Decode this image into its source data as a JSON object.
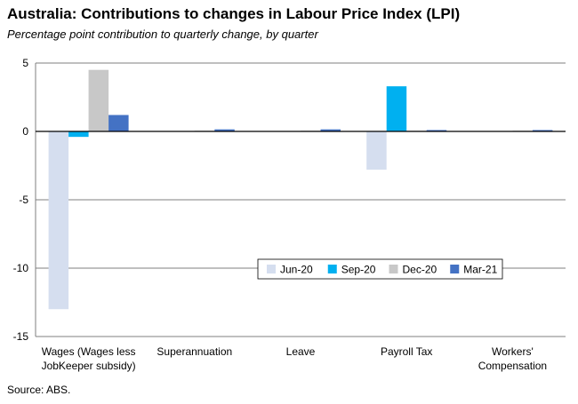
{
  "chart_data": {
    "type": "bar",
    "title": "Australia: Contributions to changes in Labour Price Index (LPI)",
    "subtitle": "Percentage point contribution to quarterly change, by quarter",
    "source": "Source: ABS.",
    "categories": [
      [
        "Wages (Wages less",
        "JobKeeper subsidy)"
      ],
      [
        "Superannuation"
      ],
      [
        "Leave"
      ],
      [
        "Payroll Tax"
      ],
      [
        "Workers'",
        "Compensation"
      ]
    ],
    "series": [
      {
        "name": "Jun-20",
        "color": "#d5deef",
        "values": [
          -13.0,
          0.0,
          0.0,
          -2.8,
          0.0
        ]
      },
      {
        "name": "Sep-20",
        "color": "#00b0f0",
        "values": [
          -0.4,
          0.0,
          0.0,
          3.3,
          0.0
        ]
      },
      {
        "name": "Dec-20",
        "color": "#c8c8c8",
        "values": [
          4.5,
          0.05,
          0.05,
          0.05,
          0.05
        ]
      },
      {
        "name": "Mar-21",
        "color": "#4472c4",
        "values": [
          1.2,
          0.15,
          0.15,
          0.1,
          0.1
        ]
      }
    ],
    "ylim": [
      -15,
      5
    ],
    "yticks": [
      5,
      0,
      -5,
      -10,
      -15
    ],
    "xlabel": "",
    "ylabel": "",
    "grid": true,
    "legend_position": "inside-lower-right"
  }
}
